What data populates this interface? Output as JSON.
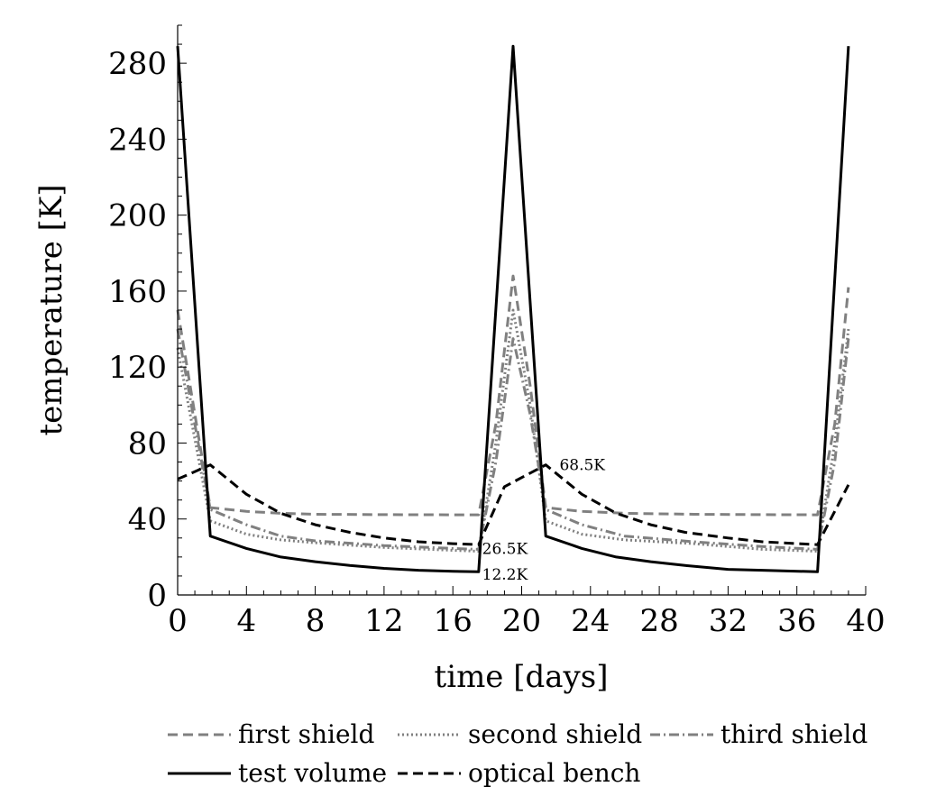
{
  "chart_data": {
    "type": "line",
    "title": "",
    "xlabel": "time [days]",
    "ylabel": "temperature [K]",
    "xlim": [
      0,
      40
    ],
    "ylim": [
      0,
      300
    ],
    "xticks": [
      0,
      4,
      8,
      12,
      16,
      20,
      24,
      28,
      32,
      36,
      40
    ],
    "yticks": [
      0,
      40,
      80,
      120,
      160,
      200,
      240,
      280
    ],
    "grid": false,
    "legend_position": "bottom",
    "series": [
      {
        "name": "first shield",
        "color": "#808080",
        "dash": "dashed",
        "points": [
          [
            0,
            150
          ],
          [
            1.9,
            46
          ],
          [
            4,
            44
          ],
          [
            6,
            43
          ],
          [
            8,
            42.5
          ],
          [
            12,
            42.3
          ],
          [
            16,
            42.2
          ],
          [
            17.5,
            42.2
          ],
          [
            18.5,
            90
          ],
          [
            19.5,
            168
          ],
          [
            20.5,
            110
          ],
          [
            21.4,
            46
          ],
          [
            23.5,
            44
          ],
          [
            26,
            43
          ],
          [
            30,
            42.5
          ],
          [
            34,
            42.3
          ],
          [
            37.2,
            42.2
          ],
          [
            38.2,
            90
          ],
          [
            39,
            162
          ]
        ]
      },
      {
        "name": "second shield",
        "color": "#808080",
        "dash": "dotted",
        "points": [
          [
            0,
            130
          ],
          [
            1.9,
            39
          ],
          [
            4,
            32
          ],
          [
            6,
            29
          ],
          [
            8,
            27.5
          ],
          [
            12,
            25
          ],
          [
            16,
            23.5
          ],
          [
            17.5,
            23
          ],
          [
            18.5,
            80
          ],
          [
            19.5,
            150
          ],
          [
            20.5,
            100
          ],
          [
            21.4,
            39
          ],
          [
            23.5,
            32
          ],
          [
            26,
            29
          ],
          [
            30,
            27
          ],
          [
            34,
            24
          ],
          [
            37.2,
            23
          ],
          [
            38.2,
            80
          ],
          [
            39,
            140
          ]
        ]
      },
      {
        "name": "third shield",
        "color": "#808080",
        "dash": "dashdot",
        "points": [
          [
            0,
            140
          ],
          [
            1.9,
            45
          ],
          [
            4,
            37
          ],
          [
            6,
            31
          ],
          [
            8,
            28.5
          ],
          [
            12,
            26
          ],
          [
            16,
            24.5
          ],
          [
            17.5,
            24
          ],
          [
            18.5,
            70
          ],
          [
            19.5,
            135
          ],
          [
            20.5,
            95
          ],
          [
            21.4,
            45
          ],
          [
            23.5,
            37
          ],
          [
            26,
            31
          ],
          [
            30,
            28
          ],
          [
            34,
            25.5
          ],
          [
            37.2,
            24
          ],
          [
            38.2,
            70
          ],
          [
            39,
            135
          ]
        ]
      },
      {
        "name": "test volume",
        "color": "#000000",
        "dash": "solid",
        "points": [
          [
            0,
            289
          ],
          [
            1.9,
            31
          ],
          [
            4,
            24.5
          ],
          [
            6,
            20
          ],
          [
            8,
            17.5
          ],
          [
            10,
            15.5
          ],
          [
            12,
            14
          ],
          [
            14,
            13
          ],
          [
            16,
            12.5
          ],
          [
            17.5,
            12.2
          ],
          [
            19.5,
            289
          ],
          [
            21.4,
            31
          ],
          [
            23.5,
            24.5
          ],
          [
            25.5,
            20
          ],
          [
            27.5,
            17.5
          ],
          [
            29.5,
            15.5
          ],
          [
            32,
            13.5
          ],
          [
            34,
            13
          ],
          [
            37.2,
            12.2
          ],
          [
            39,
            289
          ]
        ]
      },
      {
        "name": "optical bench",
        "color": "#000000",
        "dash": "dashed",
        "points": [
          [
            0,
            61
          ],
          [
            1.9,
            68.5
          ],
          [
            4,
            53
          ],
          [
            6,
            43
          ],
          [
            8,
            37
          ],
          [
            10,
            33
          ],
          [
            12,
            30
          ],
          [
            14,
            28
          ],
          [
            16,
            27
          ],
          [
            17.5,
            26.5
          ],
          [
            19,
            57
          ],
          [
            21.4,
            68.5
          ],
          [
            23.5,
            53
          ],
          [
            25.5,
            43
          ],
          [
            27.5,
            37
          ],
          [
            29.5,
            33
          ],
          [
            32,
            30
          ],
          [
            34,
            28
          ],
          [
            37.2,
            26.5
          ],
          [
            39,
            58
          ]
        ]
      }
    ],
    "annotations": [
      {
        "text": "68.5K",
        "x": 22.2,
        "y": 68.5
      },
      {
        "text": "26.5K",
        "x": 17.7,
        "y": 24.5
      },
      {
        "text": "12.2K",
        "x": 17.7,
        "y": 11
      }
    ]
  }
}
